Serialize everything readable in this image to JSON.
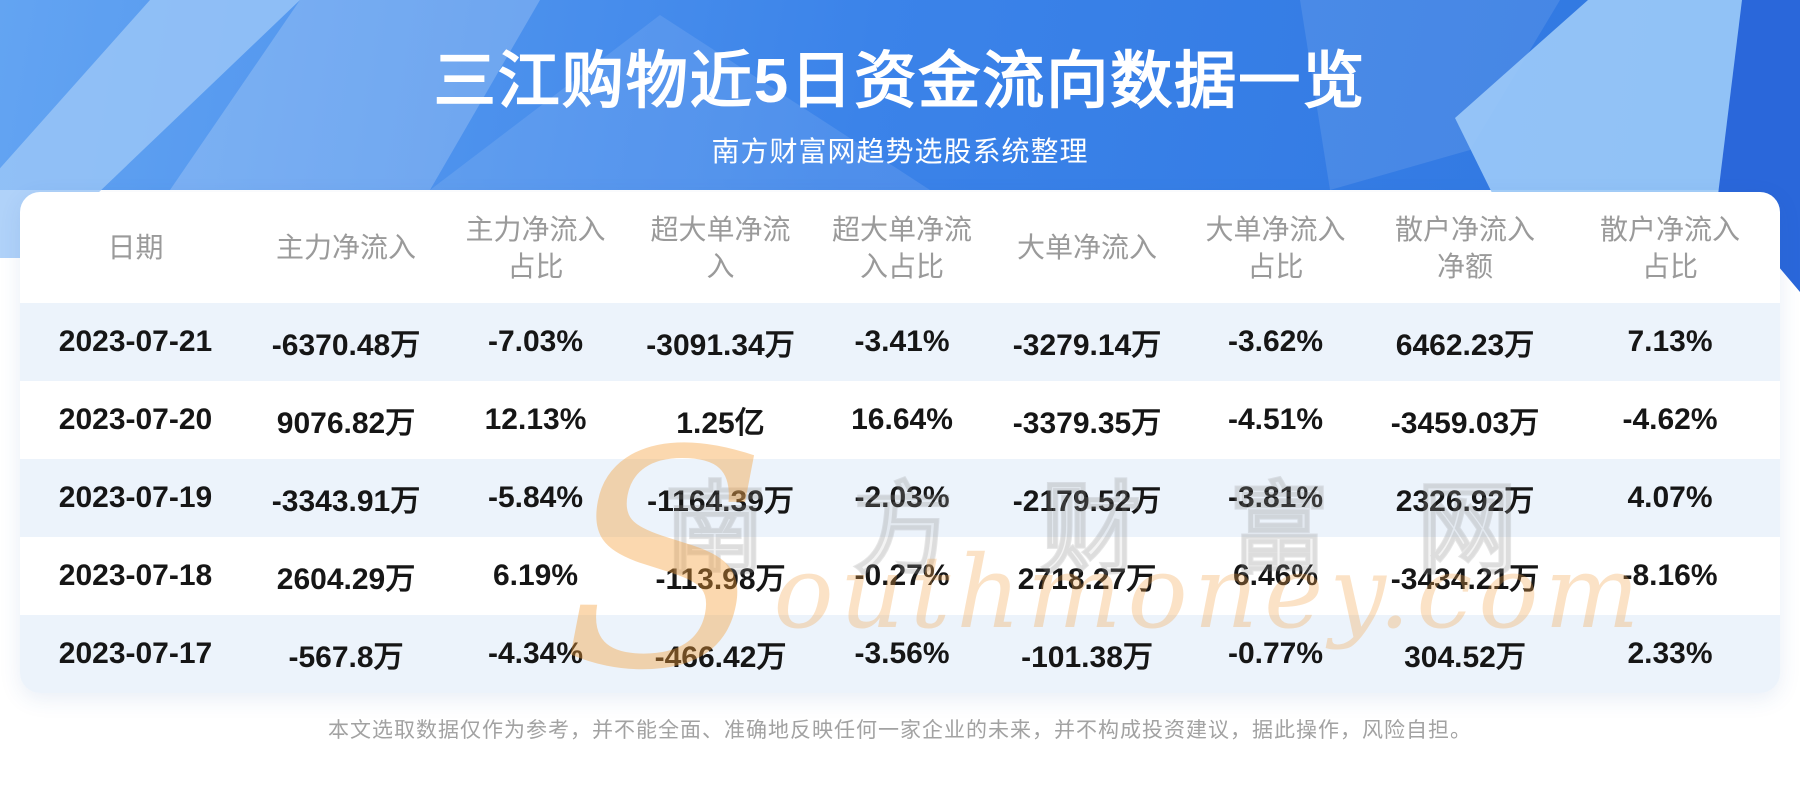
{
  "page": {
    "title": "三江购物近5日资金流向数据一览",
    "subtitle": "南方财富网趋势选股系统整理"
  },
  "table": {
    "columns": [
      {
        "key": "date",
        "label": "日期"
      },
      {
        "key": "main-net-inflow",
        "label": "主力净流入"
      },
      {
        "key": "main-net-inflow-pct",
        "label": "主力净流入\n占比"
      },
      {
        "key": "xl-order-net-inflow",
        "label": "超大单净流\n入"
      },
      {
        "key": "xl-order-net-inflow-pct",
        "label": "超大单净流\n入占比"
      },
      {
        "key": "large-order-net-inflow",
        "label": "大单净流入"
      },
      {
        "key": "large-order-net-inflow-pct",
        "label": "大单净流入\n占比"
      },
      {
        "key": "retail-net-inflow",
        "label": "散户净流入\n净额"
      },
      {
        "key": "retail-net-inflow-pct",
        "label": "散户净流入\n占比"
      }
    ],
    "rows": [
      [
        "2023-07-21",
        "-6370.48万",
        "-7.03%",
        "-3091.34万",
        "-3.41%",
        "-3279.14万",
        "-3.62%",
        "6462.23万",
        "7.13%"
      ],
      [
        "2023-07-20",
        "9076.82万",
        "12.13%",
        "1.25亿",
        "16.64%",
        "-3379.35万",
        "-4.51%",
        "-3459.03万",
        "-4.62%"
      ],
      [
        "2023-07-19",
        "-3343.91万",
        "-5.84%",
        "-1164.39万",
        "-2.03%",
        "-2179.52万",
        "-3.81%",
        "2326.92万",
        "4.07%"
      ],
      [
        "2023-07-18",
        "2604.29万",
        "6.19%",
        "-113.98万",
        "-0.27%",
        "2718.27万",
        "6.46%",
        "-3434.21万",
        "-8.16%"
      ],
      [
        "2023-07-17",
        "-567.8万",
        "-4.34%",
        "-466.42万",
        "-3.56%",
        "-101.38万",
        "-0.77%",
        "304.52万",
        "2.33%"
      ]
    ]
  },
  "watermark": {
    "cjk": "南方财富网",
    "latin": "Southmoney.com"
  },
  "footer": {
    "disclaimer": "本文选取数据仅作为参考，并不能全面、准确地反映任何一家企业的未来，并不构成投资建议，据此操作，风险自担。"
  },
  "colors": {
    "banner_blue": "#3b83e9",
    "banner_blue_dark": "#2a67da",
    "banner_prism_light": "#9ccaf8",
    "row_alt": "#ecf3fb",
    "header_text": "#9a9a9a",
    "body_text": "#161616",
    "footer_text": "#a2a2a2",
    "watermark_orange": "#f4a64d",
    "title_text": "#ffffff"
  },
  "chart_data": {
    "type": "table",
    "title": "三江购物近5日资金流向数据一览",
    "subtitle": "南方财富网趋势选股系统整理",
    "columns": [
      "日期",
      "主力净流入",
      "主力净流入占比",
      "超大单净流入",
      "超大单净流入占比",
      "大单净流入",
      "大单净流入占比",
      "散户净流入净额",
      "散户净流入占比"
    ],
    "rows": [
      [
        "2023-07-21",
        "-6370.48万",
        "-7.03%",
        "-3091.34万",
        "-3.41%",
        "-3279.14万",
        "-3.62%",
        "6462.23万",
        "7.13%"
      ],
      [
        "2023-07-20",
        "9076.82万",
        "12.13%",
        "1.25亿",
        "16.64%",
        "-3379.35万",
        "-4.51%",
        "-3459.03万",
        "-4.62%"
      ],
      [
        "2023-07-19",
        "-3343.91万",
        "-5.84%",
        "-1164.39万",
        "-2.03%",
        "-2179.52万",
        "-3.81%",
        "2326.92万",
        "4.07%"
      ],
      [
        "2023-07-18",
        "2604.29万",
        "6.19%",
        "-113.98万",
        "-0.27%",
        "2718.27万",
        "6.46%",
        "-3434.21万",
        "-8.16%"
      ],
      [
        "2023-07-17",
        "-567.8万",
        "-4.34%",
        "-466.42万",
        "-3.56%",
        "-101.38万",
        "-0.77%",
        "304.52万",
        "2.33%"
      ]
    ]
  }
}
